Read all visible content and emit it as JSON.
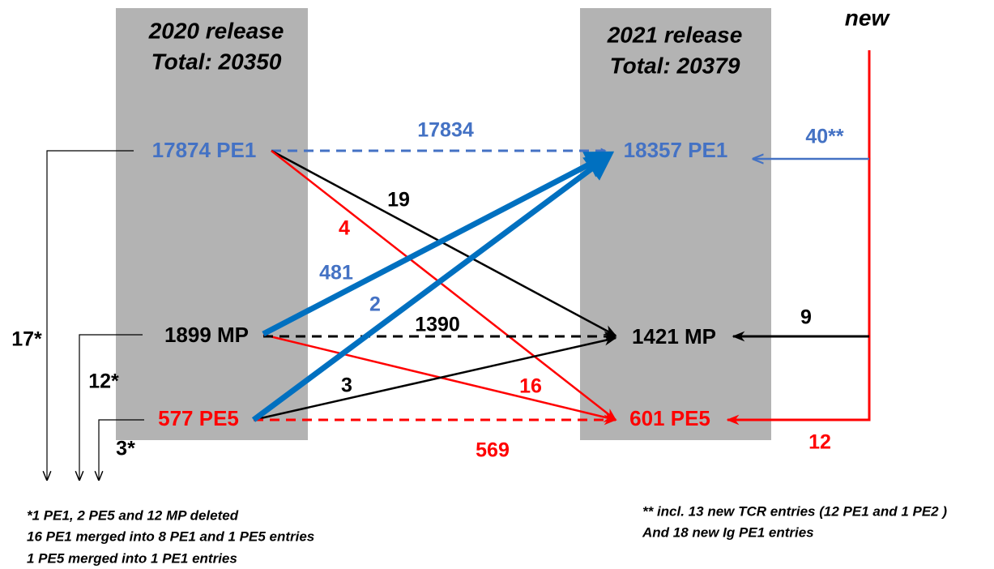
{
  "columns": [
    {
      "title": "2020 release",
      "total": "Total: 20350",
      "nodes": [
        "17874 PE1",
        "1899 MP",
        "577 PE5"
      ]
    },
    {
      "title": "2021 release",
      "total": "Total: 20379",
      "nodes": [
        "18357 PE1",
        "1421 MP",
        "601 PE5"
      ]
    }
  ],
  "new_label": "new",
  "flows": {
    "pe1_pe1": "17834",
    "pe1_mp": "19",
    "pe1_pe5": "4",
    "mp_pe1": "481",
    "mp_mp": "1390",
    "mp_pe5": "16",
    "pe5_pe1": "2",
    "pe5_mp": "3",
    "pe5_pe5": "569",
    "new_pe1": "40**",
    "new_mp": "9",
    "new_pe5": "12"
  },
  "deleted": [
    "17*",
    "12*",
    "3*"
  ],
  "footnotes_left": [
    "*1 PE1, 2 PE5 and 12 MP deleted",
    "16 PE1 merged into 8 PE1 and 1 PE5 entries",
    "1 PE5 merged into 1 PE1 entries"
  ],
  "footnotes_right": [
    "** incl. 13 new TCR entries (12 PE1 and 1 PE2 )",
    "And 18 new Ig PE1 entries"
  ]
}
